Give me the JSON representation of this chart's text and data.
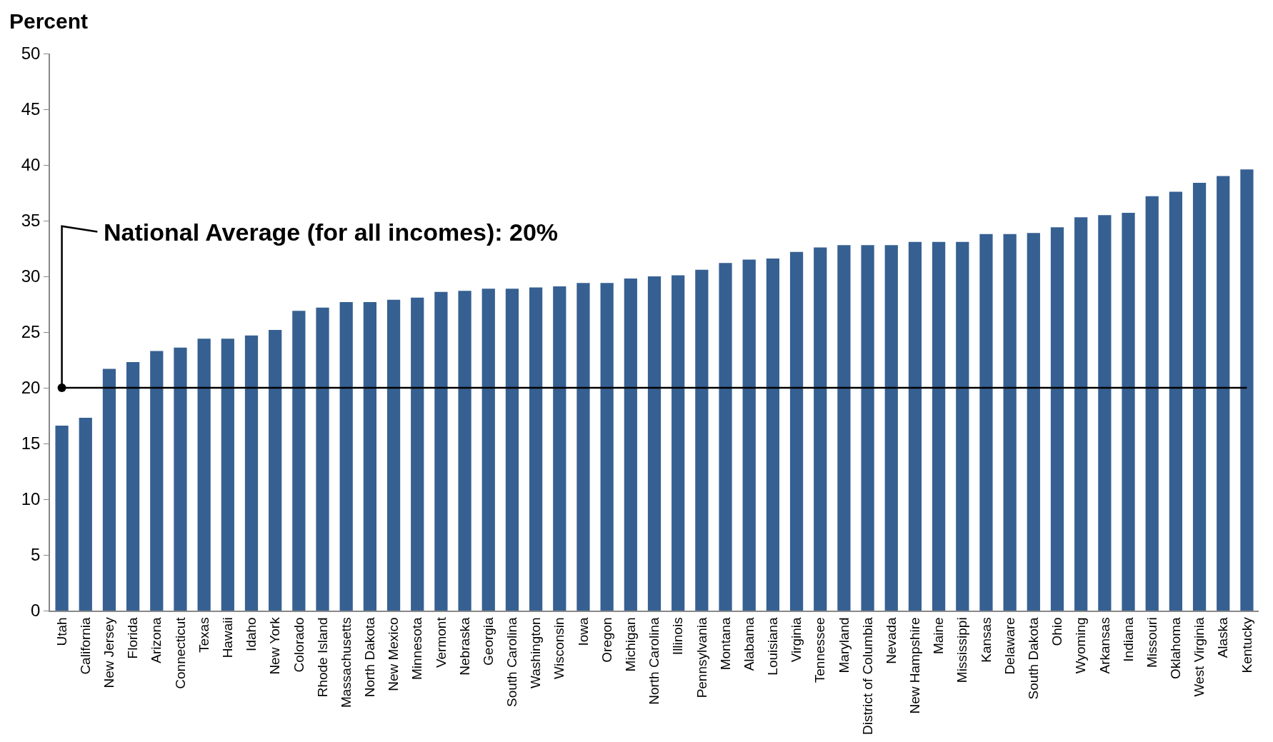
{
  "chart_data": {
    "type": "bar",
    "ylabel": "Percent",
    "categories": [
      "Utah",
      "California",
      "New Jersey",
      "Florida",
      "Arizona",
      "Connecticut",
      "Texas",
      "Hawaii",
      "Idaho",
      "New York",
      "Colorado",
      "Rhode Island",
      "Massachusetts",
      "North Dakota",
      "New Mexico",
      "Minnesota",
      "Vermont",
      "Nebraska",
      "Georgia",
      "South Carolina",
      "Washington",
      "Wisconsin",
      "Iowa",
      "Oregon",
      "Michigan",
      "North Carolina",
      "Illinois",
      "Pennsylvania",
      "Montana",
      "Alabama",
      "Louisiana",
      "Virginia",
      "Tennessee",
      "Maryland",
      "District of Columbia",
      "Nevada",
      "New Hampshire",
      "Maine",
      "Mississippi",
      "Kansas",
      "Delaware",
      "South Dakota",
      "Ohio",
      "Wyoming",
      "Arkansas",
      "Indiana",
      "Missouri",
      "Oklahoma",
      "West Virginia",
      "Alaska",
      "Kentucky"
    ],
    "values": [
      16.6,
      17.3,
      21.7,
      22.3,
      23.3,
      23.6,
      24.4,
      24.4,
      24.7,
      25.2,
      26.9,
      27.2,
      27.7,
      27.7,
      27.9,
      28.1,
      28.6,
      28.7,
      28.9,
      28.9,
      29.0,
      29.1,
      29.4,
      29.4,
      29.8,
      30.0,
      30.1,
      30.6,
      31.2,
      31.5,
      31.6,
      32.2,
      32.6,
      32.8,
      32.8,
      32.8,
      33.1,
      33.1,
      33.1,
      33.8,
      33.8,
      33.9,
      34.4,
      35.3,
      35.5,
      35.7,
      37.2,
      37.6,
      38.4,
      39.0,
      39.6
    ],
    "color": "#366092",
    "ylim": [
      0,
      50
    ],
    "yticks": [
      0,
      5,
      10,
      15,
      20,
      25,
      30,
      35,
      40,
      45,
      50
    ],
    "ref_lines": [
      {
        "axis": "y",
        "value": 20,
        "label": "National Average (for all incomes): 20%",
        "color": "#000000"
      }
    ],
    "grid": false
  }
}
